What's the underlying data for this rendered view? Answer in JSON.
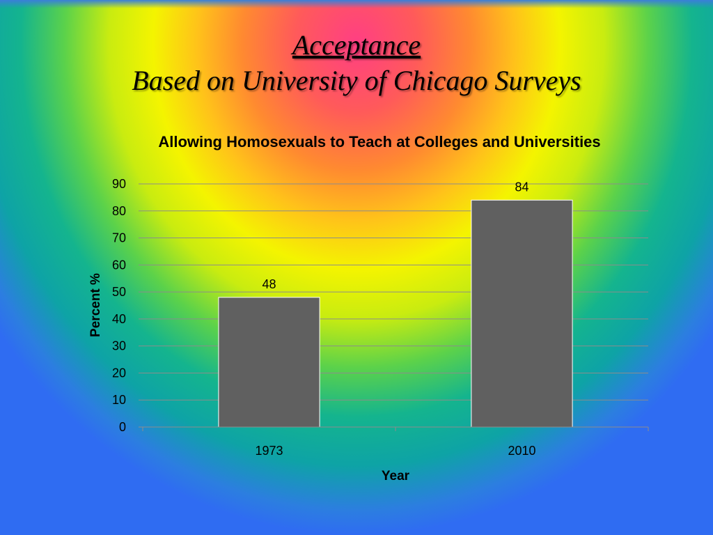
{
  "slide": {
    "title_line1": "Acceptance",
    "title_line2": "Based on University of Chicago Surveys"
  },
  "chart_data": {
    "type": "bar",
    "title": "Allowing Homosexuals to Teach at Colleges and Universities",
    "categories": [
      "1973",
      "2010"
    ],
    "values": [
      48,
      84
    ],
    "data_labels": [
      "48",
      "84"
    ],
    "xlabel": "Year",
    "ylabel": "Percent %",
    "ylim": [
      0,
      90
    ],
    "yticks": [
      "0",
      "10",
      "20",
      "30",
      "40",
      "50",
      "60",
      "70",
      "80",
      "90"
    ],
    "grid": true,
    "legend": "none",
    "bar_color": "#606060"
  }
}
